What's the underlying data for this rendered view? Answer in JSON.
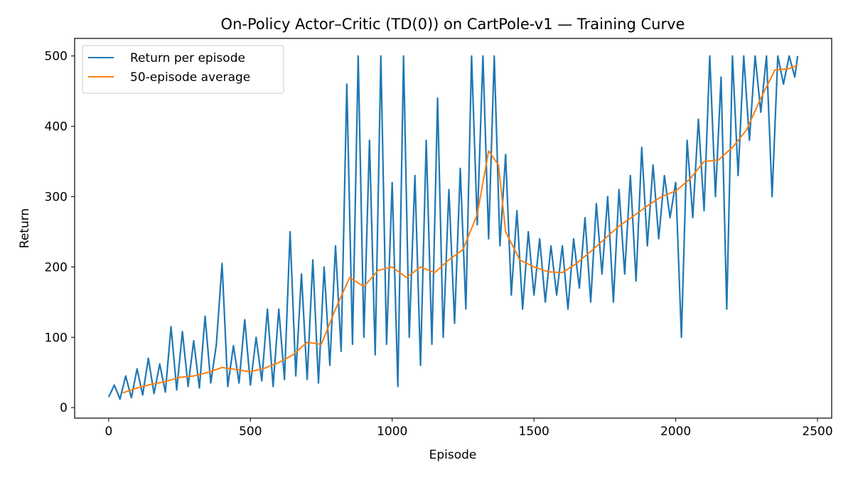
{
  "chart_data": {
    "type": "line",
    "title": "On-Policy Actor–Critic (TD(0)) on CartPole-v1 — Training Curve",
    "xlabel": "Episode",
    "ylabel": "Return",
    "xlim": [
      -120,
      2550
    ],
    "ylim": [
      -15,
      525
    ],
    "xticks": [
      0,
      500,
      1000,
      1500,
      2000,
      2500
    ],
    "yticks": [
      0,
      100,
      200,
      300,
      400,
      500
    ],
    "grid": false,
    "legend_position": "top-left",
    "series": [
      {
        "name": "Return per episode",
        "color": "#1f77b4",
        "x": [
          0,
          20,
          40,
          60,
          80,
          100,
          120,
          140,
          160,
          180,
          200,
          220,
          240,
          260,
          280,
          300,
          320,
          340,
          360,
          380,
          400,
          420,
          440,
          460,
          480,
          500,
          520,
          540,
          560,
          580,
          600,
          620,
          640,
          660,
          680,
          700,
          720,
          740,
          760,
          780,
          800,
          820,
          840,
          860,
          880,
          900,
          920,
          940,
          960,
          980,
          1000,
          1020,
          1040,
          1060,
          1080,
          1100,
          1120,
          1140,
          1160,
          1180,
          1200,
          1220,
          1240,
          1260,
          1280,
          1300,
          1320,
          1340,
          1360,
          1380,
          1400,
          1420,
          1440,
          1460,
          1480,
          1500,
          1520,
          1540,
          1560,
          1580,
          1600,
          1620,
          1640,
          1660,
          1680,
          1700,
          1720,
          1740,
          1760,
          1780,
          1800,
          1820,
          1840,
          1860,
          1880,
          1900,
          1920,
          1940,
          1960,
          1980,
          2000,
          2020,
          2040,
          2060,
          2080,
          2100,
          2120,
          2140,
          2160,
          2180,
          2200,
          2220,
          2240,
          2260,
          2280,
          2300,
          2320,
          2340,
          2360,
          2380,
          2400,
          2420,
          2430
        ],
        "y": [
          15,
          32,
          12,
          45,
          14,
          55,
          18,
          70,
          20,
          62,
          22,
          115,
          25,
          108,
          30,
          95,
          28,
          130,
          35,
          90,
          205,
          30,
          88,
          35,
          125,
          32,
          100,
          38,
          140,
          30,
          140,
          40,
          250,
          45,
          190,
          40,
          210,
          35,
          200,
          60,
          230,
          80,
          460,
          90,
          500,
          100,
          380,
          75,
          500,
          90,
          320,
          30,
          500,
          100,
          330,
          60,
          380,
          90,
          440,
          100,
          310,
          120,
          340,
          140,
          500,
          260,
          500,
          240,
          500,
          230,
          360,
          160,
          280,
          140,
          250,
          160,
          240,
          150,
          230,
          160,
          230,
          140,
          240,
          170,
          270,
          150,
          290,
          190,
          300,
          150,
          310,
          190,
          330,
          180,
          370,
          230,
          345,
          240,
          330,
          270,
          320,
          100,
          380,
          270,
          410,
          280,
          500,
          300,
          470,
          140,
          500,
          330,
          500,
          380,
          500,
          420,
          500,
          300,
          500,
          460,
          500,
          470,
          500
        ]
      },
      {
        "name": "50-episode average",
        "color": "#ff7f0e",
        "x": [
          50,
          100,
          150,
          200,
          250,
          300,
          350,
          400,
          450,
          500,
          550,
          600,
          650,
          700,
          750,
          800,
          850,
          900,
          950,
          1000,
          1050,
          1100,
          1150,
          1200,
          1250,
          1300,
          1340,
          1375,
          1400,
          1450,
          1500,
          1550,
          1600,
          1650,
          1700,
          1750,
          1800,
          1850,
          1900,
          1950,
          2000,
          2050,
          2100,
          2150,
          2200,
          2250,
          2300,
          2350,
          2400,
          2430
        ],
        "y": [
          21,
          28,
          33,
          37,
          43,
          45,
          50,
          57,
          54,
          51,
          56,
          64,
          75,
          93,
          90,
          140,
          185,
          172,
          195,
          200,
          185,
          200,
          192,
          210,
          225,
          275,
          365,
          345,
          250,
          210,
          200,
          193,
          192,
          205,
          222,
          240,
          258,
          272,
          287,
          300,
          308,
          325,
          350,
          352,
          370,
          395,
          440,
          480,
          482,
          487
        ]
      }
    ]
  }
}
